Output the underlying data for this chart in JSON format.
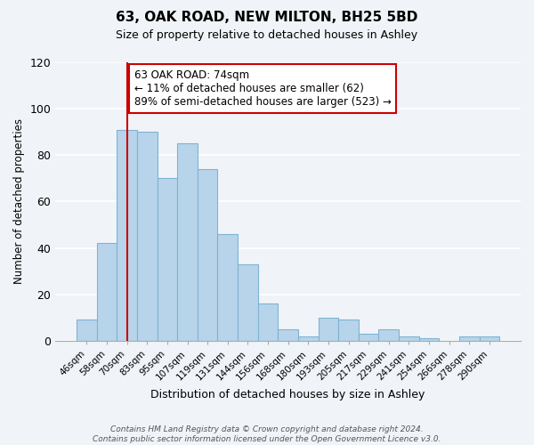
{
  "title": "63, OAK ROAD, NEW MILTON, BH25 5BD",
  "subtitle": "Size of property relative to detached houses in Ashley",
  "xlabel": "Distribution of detached houses by size in Ashley",
  "ylabel": "Number of detached properties",
  "bin_labels": [
    "46sqm",
    "58sqm",
    "70sqm",
    "83sqm",
    "95sqm",
    "107sqm",
    "119sqm",
    "131sqm",
    "144sqm",
    "156sqm",
    "168sqm",
    "180sqm",
    "193sqm",
    "205sqm",
    "217sqm",
    "229sqm",
    "241sqm",
    "254sqm",
    "266sqm",
    "278sqm",
    "290sqm"
  ],
  "bar_values": [
    9,
    42,
    91,
    90,
    70,
    85,
    74,
    46,
    33,
    16,
    5,
    2,
    10,
    9,
    3,
    5,
    2,
    1,
    0,
    2,
    2
  ],
  "bar_color": "#b8d4ea",
  "bar_edge_color": "#7fb3d3",
  "marker_line_index": 2,
  "annotation_title": "63 OAK ROAD: 74sqm",
  "annotation_line1": "← 11% of detached houses are smaller (62)",
  "annotation_line2": "89% of semi-detached houses are larger (523) →",
  "annotation_box_color": "#ffffff",
  "annotation_box_edge": "#cc0000",
  "marker_line_color": "#cc0000",
  "ylim": [
    0,
    120
  ],
  "yticks": [
    0,
    20,
    40,
    60,
    80,
    100,
    120
  ],
  "footer_line1": "Contains HM Land Registry data © Crown copyright and database right 2024.",
  "footer_line2": "Contains public sector information licensed under the Open Government Licence v3.0.",
  "background_color": "#f0f4f8"
}
